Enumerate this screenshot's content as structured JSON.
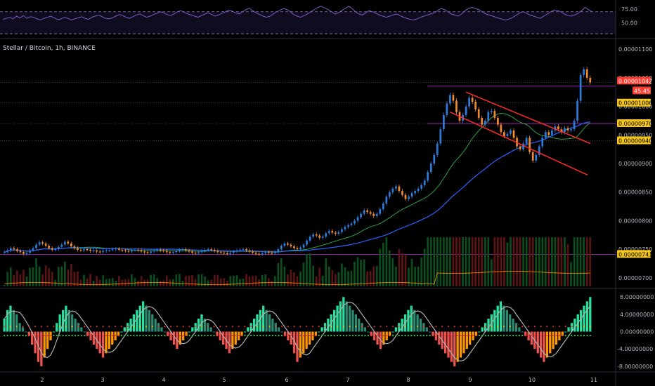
{
  "symbol_title": "Stellar / Bitcoin, 1h, BINANCE",
  "colors": {
    "background": "#000000",
    "candle_up": "#2e7bd8",
    "candle_down": "#f08a30",
    "ma_green": "#2ea043",
    "ma_blue": "#2962ff",
    "channel": "#ff2a2a",
    "hline": "#9c27b0",
    "rsi_line": "#7e57c2",
    "osc_up": "#26a69a",
    "osc_down": "#ef5350",
    "osc_orange": "#ff9800",
    "tag_yellow": "#f5c518",
    "tag_red": "#ff3b30"
  },
  "rsi_axis": {
    "ticks": [
      "75.00",
      "50.00"
    ]
  },
  "price_axis": {
    "ticks": [
      "0.00001100",
      "0.00001050",
      "0.00001000",
      "0.00000950",
      "0.00000900",
      "0.00000850",
      "0.00000800",
      "0.00000750",
      "0.00000700"
    ],
    "tags": [
      {
        "label": "0.00001042",
        "color": "#ff3b30",
        "text_color": "#ffffff"
      },
      {
        "label": "45:45",
        "color": "#ff3b30",
        "text_color": "#ffffff"
      },
      {
        "label": "0.00001006",
        "color": "#f5c518",
        "text_color": "#000000"
      },
      {
        "label": "0.00000970",
        "color": "#f5c518",
        "text_color": "#000000"
      },
      {
        "label": "0.00000940",
        "color": "#f5c518",
        "text_color": "#000000"
      },
      {
        "label": "0.00000741",
        "color": "#f5c518",
        "text_color": "#000000"
      }
    ]
  },
  "osc_axis": {
    "ticks": [
      "8.00000000",
      "4.00000000",
      "0.00000000",
      "-4.00000000",
      "-8.00000000"
    ]
  },
  "x_axis": {
    "ticks": [
      "2",
      "3",
      "4",
      "5",
      "6",
      "7",
      "8",
      "9",
      "10",
      "11"
    ]
  },
  "chart_data": [
    {
      "type": "line",
      "panel": "RSI",
      "ylim": [
        25,
        85
      ],
      "reference_lines": [
        70,
        30
      ],
      "values": [
        56,
        58,
        60,
        57,
        62,
        59,
        63,
        58,
        61,
        60,
        57,
        55,
        58,
        60,
        62,
        59,
        56,
        57,
        60,
        58,
        55,
        57,
        59,
        61,
        58,
        56,
        60,
        62,
        64,
        61,
        58,
        57,
        59,
        62,
        65,
        63,
        60,
        58,
        61,
        64,
        66,
        63,
        60,
        62,
        65,
        67,
        70,
        68,
        65,
        63,
        66,
        70,
        72,
        69,
        66,
        64,
        62,
        60,
        63,
        66,
        68,
        65,
        62,
        64,
        67,
        70,
        73,
        71,
        68,
        66,
        70,
        74,
        76,
        72,
        68,
        65,
        62,
        60,
        62,
        66,
        70,
        73,
        76,
        74,
        70,
        65,
        62,
        60,
        63,
        66,
        70,
        74,
        78,
        80,
        77,
        74,
        70,
        66,
        68,
        72,
        76,
        80,
        76,
        70,
        66,
        64,
        68,
        72,
        70,
        67,
        64,
        62,
        60,
        62,
        64,
        66,
        63,
        60,
        58,
        56,
        55,
        57,
        60,
        62,
        64,
        66,
        68,
        72,
        76,
        74,
        70,
        66,
        64,
        62,
        66,
        72,
        76,
        78,
        76,
        74,
        70,
        66,
        64,
        62,
        60,
        58,
        56,
        55,
        57,
        60,
        64,
        68,
        70,
        67,
        64,
        62,
        60,
        58,
        62,
        66,
        70,
        73,
        72,
        70,
        66,
        63,
        62,
        64,
        67,
        72,
        78,
        74,
        70
      ]
    },
    {
      "type": "candlestick",
      "panel": "Price",
      "ylim": [
        6.85e-06,
        1.115e-05
      ],
      "x_ticks": [
        "2",
        "3",
        "4",
        "5",
        "6",
        "7",
        "8",
        "9",
        "10",
        "11"
      ],
      "close_values": [
        7.45e-06,
        7.48e-06,
        7.52e-06,
        7.5e-06,
        7.47e-06,
        7.45e-06,
        7.42e-06,
        7.44e-06,
        7.48e-06,
        7.52e-06,
        7.58e-06,
        7.62e-06,
        7.6e-06,
        7.56e-06,
        7.52e-06,
        7.49e-06,
        7.5e-06,
        7.54e-06,
        7.58e-06,
        7.63e-06,
        7.6e-06,
        7.55e-06,
        7.52e-06,
        7.49e-06,
        7.48e-06,
        7.5e-06,
        7.49e-06,
        7.47e-06,
        7.48e-06,
        7.46e-06,
        7.45e-06,
        7.47e-06,
        7.48e-06,
        7.49e-06,
        7.5e-06,
        7.51e-06,
        7.49e-06,
        7.48e-06,
        7.47e-06,
        7.46e-06,
        7.48e-06,
        7.49e-06,
        7.48e-06,
        7.46e-06,
        7.45e-06,
        7.44e-06,
        7.46e-06,
        7.48e-06,
        7.49e-06,
        7.48e-06,
        7.47e-06,
        7.45e-06,
        7.44e-06,
        7.45e-06,
        7.47e-06,
        7.49e-06,
        7.5e-06,
        7.48e-06,
        7.46e-06,
        7.44e-06,
        7.43e-06,
        7.45e-06,
        7.47e-06,
        7.49e-06,
        7.5e-06,
        7.49e-06,
        7.47e-06,
        7.45e-06,
        7.44e-06,
        7.43e-06,
        7.42e-06,
        7.44e-06,
        7.46e-06,
        7.48e-06,
        7.49e-06,
        7.5e-06,
        7.48e-06,
        7.46e-06,
        7.44e-06,
        7.42e-06,
        7.41e-06,
        7.43e-06,
        7.45e-06,
        7.44e-06,
        7.43e-06,
        7.45e-06,
        7.5e-06,
        7.56e-06,
        7.6e-06,
        7.58e-06,
        7.55e-06,
        7.52e-06,
        7.5e-06,
        7.53e-06,
        7.58e-06,
        7.65e-06,
        7.72e-06,
        7.76e-06,
        7.74e-06,
        7.7e-06,
        7.72e-06,
        7.78e-06,
        7.82e-06,
        7.79e-06,
        7.77e-06,
        7.8e-06,
        7.85e-06,
        7.89e-06,
        7.92e-06,
        7.95e-06,
        8e-06,
        8.06e-06,
        8.12e-06,
        8.18e-06,
        8.15e-06,
        8.12e-06,
        8.08e-06,
        8.12e-06,
        8.2e-06,
        8.3e-06,
        8.42e-06,
        8.5e-06,
        8.56e-06,
        8.6e-06,
        8.52e-06,
        8.45e-06,
        8.38e-06,
        8.42e-06,
        8.48e-06,
        8.52e-06,
        8.56e-06,
        8.62e-06,
        8.7e-06,
        8.85e-06,
        9e-06,
        9.15e-06,
        9.35e-06,
        9.6e-06,
        9.85e-06,
        1.005e-05,
        1.02e-05,
        1.01e-05,
        9.9e-06,
        9.75e-06,
        9.85e-06,
        1e-05,
        1.015e-05,
        1.008e-05,
        9.95e-06,
        9.8e-06,
        9.68e-06,
        9.75e-06,
        9.9e-06,
        9.92e-06,
        9.8e-06,
        9.68e-06,
        9.55e-06,
        9.48e-06,
        9.52e-06,
        9.58e-06,
        9.45e-06,
        9.3e-06,
        9.25e-06,
        9.35e-06,
        9.45e-06,
        9.2e-06,
        9.05e-06,
        9.15e-06,
        9.3e-06,
        9.45e-06,
        9.55e-06,
        9.5e-06,
        9.58e-06,
        9.65e-06,
        9.6e-06,
        9.55e-06,
        9.62e-06,
        9.58e-06,
        9.6e-06,
        9.75e-06,
        1.01e-05,
        1.055e-05,
        1.065e-05,
        1.05e-05,
        1.042e-05
      ],
      "horizontal_levels": [
        1.042e-05,
        1.006e-05,
        9.7e-06,
        9.4e-06,
        7.41e-06
      ],
      "overlays": [
        "moving average (green)",
        "moving average (blue)",
        "descending channel (red)"
      ]
    },
    {
      "type": "bar",
      "panel": "Oscillator",
      "ylim": [
        -9,
        9.5
      ],
      "values": [
        3,
        5,
        6,
        5,
        4,
        2,
        1,
        0,
        -1,
        -3,
        -5,
        -7,
        -8,
        -6,
        -4,
        -2,
        0,
        2,
        4,
        5,
        6,
        5,
        4,
        3,
        2,
        1,
        0,
        -1,
        -2,
        -3,
        -4,
        -5,
        -6,
        -5,
        -4,
        -3,
        -2,
        -1,
        0,
        1,
        2,
        3,
        4,
        5,
        6,
        7,
        6,
        5,
        4,
        3,
        2,
        1,
        0,
        -1,
        -2,
        -3,
        -4,
        -3,
        -2,
        -1,
        0,
        1,
        2,
        3,
        4,
        3,
        2,
        1,
        0,
        -1,
        -2,
        -3,
        -4,
        -5,
        -4,
        -3,
        -2,
        -1,
        0,
        1,
        2,
        3,
        4,
        5,
        6,
        5,
        4,
        3,
        2,
        1,
        0,
        -1,
        -2,
        -3,
        -5,
        -7,
        -6,
        -5,
        -4,
        -3,
        -2,
        -1,
        0,
        1,
        2,
        3,
        4,
        5,
        6,
        7,
        8,
        7,
        6,
        5,
        4,
        3,
        2,
        1,
        0,
        -1,
        -2,
        -3,
        -4,
        -3,
        -2,
        -1,
        0,
        1,
        2,
        3,
        4,
        5,
        6,
        5,
        4,
        3,
        2,
        1,
        0,
        -1,
        -2,
        -3,
        -4,
        -5,
        -6,
        -7,
        -8,
        -7,
        -6,
        -5,
        -4,
        -3,
        -2,
        -1,
        0,
        1,
        2,
        3,
        4,
        5,
        6,
        7,
        6,
        5,
        4,
        3,
        2,
        1,
        0,
        -1,
        -2,
        -3,
        -4,
        -5,
        -6,
        -7,
        -6,
        -5,
        -4,
        -3,
        -2,
        -1,
        0,
        1,
        2,
        3,
        4,
        5,
        6,
        7,
        8
      ]
    }
  ]
}
